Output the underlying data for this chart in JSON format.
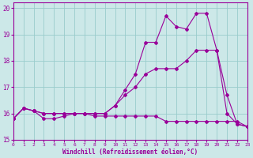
{
  "background_color": "#cce8e8",
  "grid_color": "#99cccc",
  "line_color": "#990099",
  "xlim": [
    0,
    23
  ],
  "ylim": [
    15,
    20.2
  ],
  "xticks": [
    0,
    1,
    2,
    3,
    4,
    5,
    6,
    7,
    8,
    9,
    10,
    11,
    12,
    13,
    14,
    15,
    16,
    17,
    18,
    19,
    20,
    21,
    22,
    23
  ],
  "yticks": [
    15,
    16,
    17,
    18,
    19,
    20
  ],
  "xlabel": "Windchill (Refroidissement éolien,°C)",
  "line1_x": [
    0,
    1,
    2,
    3,
    4,
    5,
    6,
    7,
    8,
    9,
    10,
    11,
    12,
    13,
    14,
    15,
    16,
    17,
    18,
    19,
    20,
    21,
    22,
    23
  ],
  "line1_y": [
    15.8,
    16.2,
    16.1,
    15.8,
    15.8,
    15.9,
    16.0,
    16.0,
    15.9,
    15.9,
    15.9,
    15.9,
    15.9,
    15.9,
    15.9,
    15.7,
    15.7,
    15.7,
    15.7,
    15.7,
    15.7,
    15.7,
    15.7,
    15.5
  ],
  "line2_x": [
    0,
    1,
    2,
    3,
    4,
    5,
    6,
    7,
    8,
    9,
    10,
    11,
    12,
    13,
    14,
    15,
    16,
    17,
    18,
    19,
    20,
    21,
    22,
    23
  ],
  "line2_y": [
    15.8,
    16.2,
    16.1,
    16.0,
    16.0,
    16.0,
    16.0,
    16.0,
    16.0,
    16.0,
    16.3,
    16.7,
    17.0,
    17.5,
    17.7,
    17.7,
    17.7,
    18.0,
    18.4,
    18.4,
    18.4,
    16.0,
    15.6,
    15.5
  ],
  "line3_x": [
    0,
    1,
    2,
    3,
    4,
    5,
    6,
    7,
    8,
    9,
    10,
    11,
    12,
    13,
    14,
    15,
    16,
    17,
    18,
    19,
    20,
    21,
    22,
    23
  ],
  "line3_y": [
    15.8,
    16.2,
    16.1,
    16.0,
    16.0,
    16.0,
    16.0,
    16.0,
    16.0,
    16.0,
    16.3,
    16.9,
    17.5,
    18.7,
    18.7,
    19.7,
    19.3,
    19.2,
    19.8,
    19.8,
    18.4,
    16.7,
    15.6,
    15.5
  ]
}
